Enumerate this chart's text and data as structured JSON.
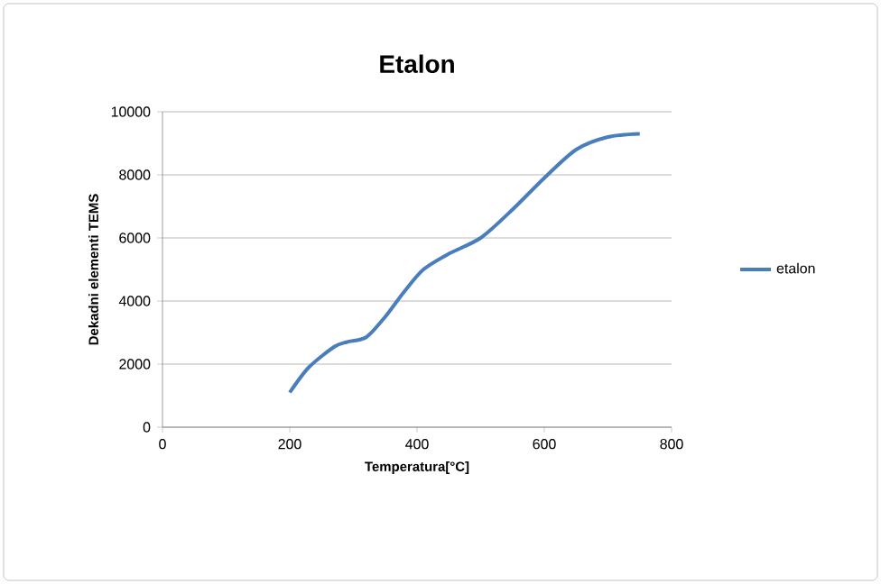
{
  "chart_data": {
    "type": "line",
    "title": "Etalon",
    "xlabel": "Temperatura[°C]",
    "ylabel": "Dekadni elementi TEMS",
    "xlim": [
      0,
      800
    ],
    "xticks": [
      0,
      200,
      400,
      600,
      800
    ],
    "ylim": [
      0,
      10000
    ],
    "yticks": [
      0,
      2000,
      4000,
      6000,
      8000,
      10000
    ],
    "grid": "y",
    "legend": "right",
    "marker": "none",
    "line_style": "solid",
    "series": [
      {
        "name": "etalon",
        "color": "#4a7ebb",
        "x": [
          200,
          230,
          270,
          290,
          320,
          350,
          380,
          410,
          450,
          500,
          550,
          600,
          650,
          700,
          750
        ],
        "values": [
          1100,
          1900,
          2550,
          2700,
          2850,
          3500,
          4300,
          5000,
          5500,
          6000,
          6900,
          7900,
          8800,
          9200,
          9300
        ]
      }
    ]
  }
}
